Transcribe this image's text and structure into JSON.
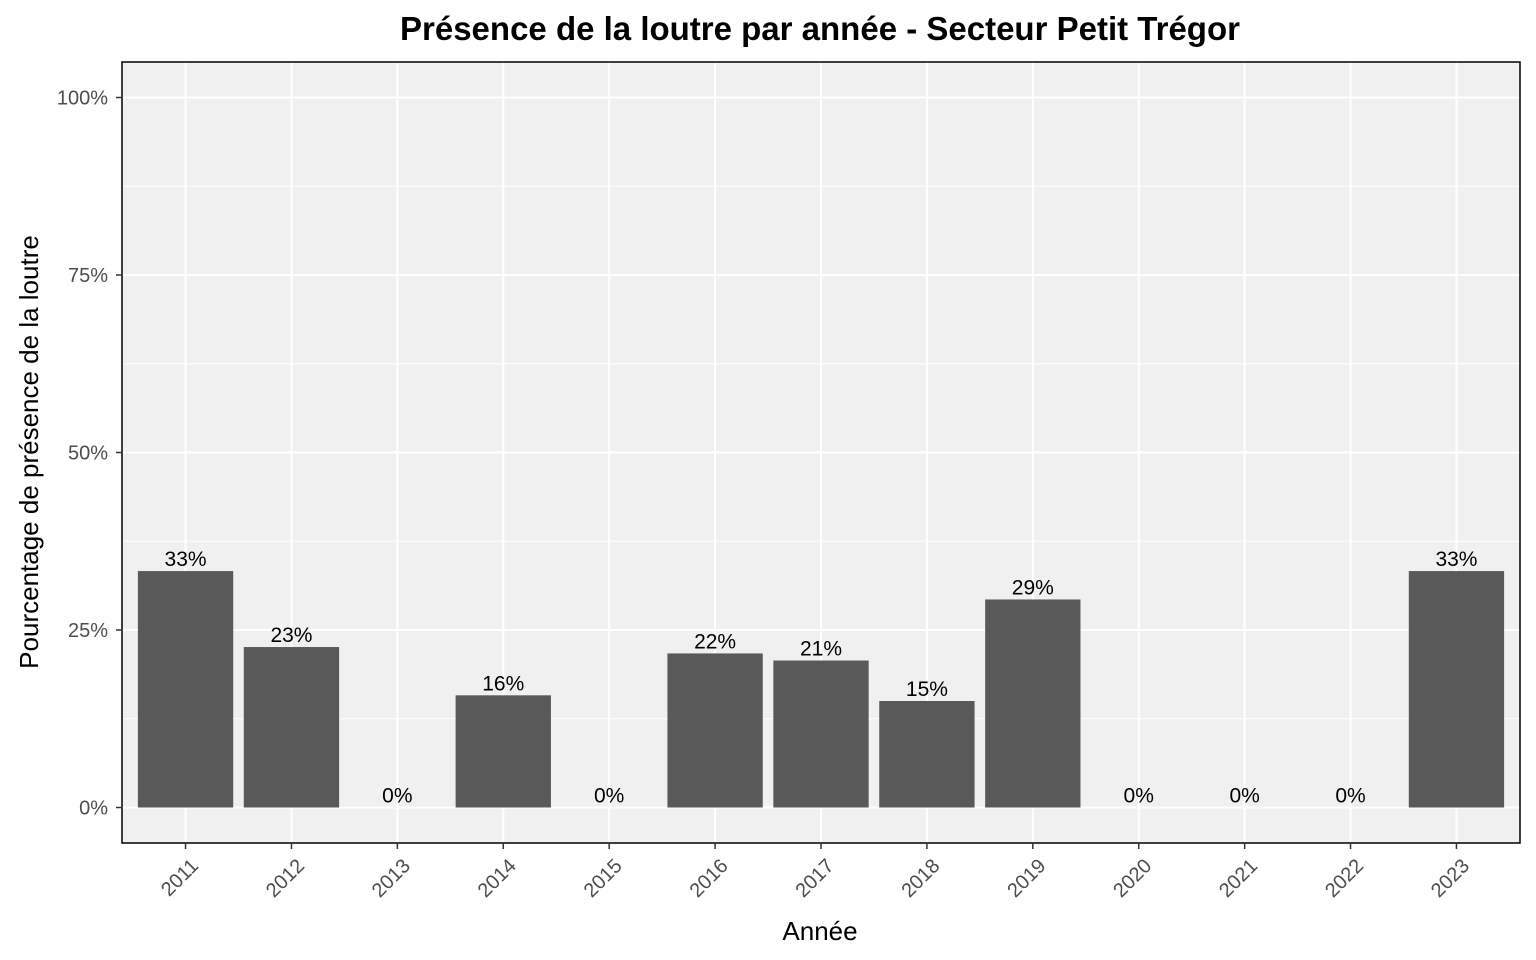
{
  "chart_data": {
    "type": "bar",
    "title": "Présence de la loutre par année - Secteur Petit Trégor",
    "xlabel": "Année",
    "ylabel": "Pourcentage de présence de la loutre",
    "categories": [
      "2011",
      "2012",
      "2013",
      "2014",
      "2015",
      "2016",
      "2017",
      "2018",
      "2019",
      "2020",
      "2021",
      "2022",
      "2023"
    ],
    "values": [
      33.3,
      22.6,
      0,
      15.8,
      0,
      21.7,
      20.7,
      15.0,
      29.3,
      0,
      0,
      0,
      33.3
    ],
    "value_labels": [
      "33%",
      "23%",
      "0%",
      "16%",
      "0%",
      "22%",
      "21%",
      "15%",
      "29%",
      "0%",
      "0%",
      "0%",
      "33%"
    ],
    "ylim": [
      -5,
      105
    ],
    "yticks": [
      0,
      25,
      50,
      75,
      100
    ],
    "ytick_labels": [
      "0%",
      "25%",
      "50%",
      "75%",
      "100%"
    ],
    "grid": true,
    "legend": "none",
    "colors": {
      "bar": "#595959",
      "panel": "#f0f0f0",
      "grid": "#ffffff"
    }
  }
}
